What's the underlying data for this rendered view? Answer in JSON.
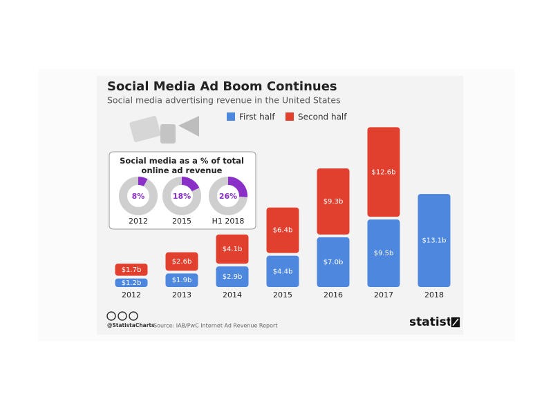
{
  "chart_data": [
    {
      "type": "bar",
      "stacked": true,
      "title": "Social Media Ad Boom Continues",
      "subtitle": "Social media advertising revenue in the United States",
      "categories": [
        "2012",
        "2013",
        "2014",
        "2015",
        "2016",
        "2017",
        "2018"
      ],
      "series": [
        {
          "name": "First half",
          "color": "#4d87de",
          "values": [
            1.2,
            1.9,
            2.9,
            4.4,
            7.0,
            9.5,
            13.1
          ],
          "value_labels": [
            "$1.2b",
            "$1.9b",
            "$2.9b",
            "$4.4b",
            "$7.0b",
            "$9.5b",
            "$13.1b"
          ]
        },
        {
          "name": "Second half",
          "color": "#e2402f",
          "values": [
            1.7,
            2.6,
            4.1,
            6.4,
            9.3,
            12.6,
            null
          ],
          "value_labels": [
            "$1.7b",
            "$2.6b",
            "$4.1b",
            "$6.4b",
            "$9.3b",
            "$12.6b",
            null
          ]
        }
      ]
    },
    {
      "type": "donut",
      "title": "Social media as a % of total online ad revenue",
      "categories": [
        "2012",
        "2015",
        "H1 2018"
      ],
      "values": [
        8,
        18,
        26
      ],
      "value_labels": [
        "8%",
        "18%",
        "26%"
      ],
      "color": "#8a2fc8",
      "track_color": "#cfcfcf"
    }
  ],
  "footer": {
    "credit": "@StatistaCharts",
    "source": "Source: IAB/PwC Internet Ad Revenue Report",
    "logo": "statista"
  }
}
